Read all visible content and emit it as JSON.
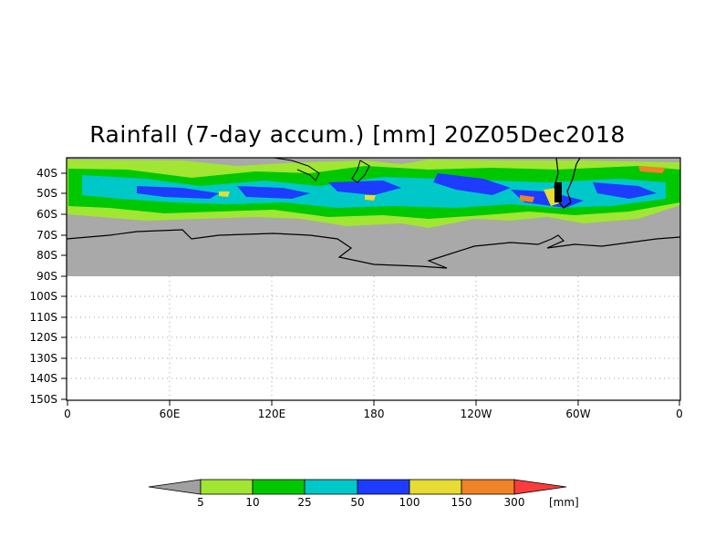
{
  "title": "Rainfall (7-day accum.) [mm] 20Z05Dec2018",
  "map": {
    "lat_labels": [
      "40S",
      "50S",
      "60S",
      "70S",
      "80S",
      "90S",
      "100S",
      "110S",
      "120S",
      "130S",
      "140S",
      "150S"
    ],
    "lon_labels": [
      "0",
      "60E",
      "120E",
      "180",
      "120W",
      "60W",
      "0"
    ],
    "projection": "lat-lon",
    "land_color": "#a9a9a9",
    "grid": "dotted"
  },
  "colorbar": {
    "thresholds": [
      "5",
      "10",
      "25",
      "50",
      "100",
      "150",
      "300"
    ],
    "unit": "[mm]",
    "colors": [
      "#a0a0a0",
      "#a0e632",
      "#00c800",
      "#00c8c8",
      "#1e3cff",
      "#e6dc32",
      "#f08228",
      "#fa3c3c"
    ]
  }
}
